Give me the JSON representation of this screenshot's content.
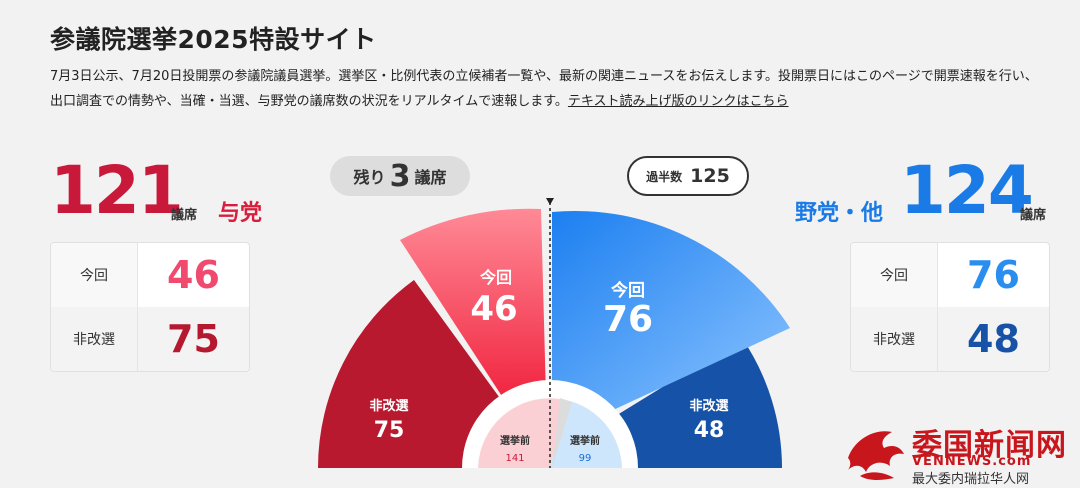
{
  "page": {
    "title": "参議院選挙2025特設サイト",
    "description": "7月3日公示、7月20日投開票の参議院議員選挙。選挙区・比例代表の立候補者一覧や、最新の関連ニュースをお伝えします。投開票日にはこのページで開票速報を行い、出口調査での情勢や、当確・当選、与野党の議席数の状況をリアルタイムで速報します。",
    "text_link": "テキスト読み上げ版のリンクはこちら"
  },
  "ruling": {
    "total": "121",
    "unit": "議席",
    "name": "与党",
    "rows": [
      {
        "label": "今回",
        "value": "46"
      },
      {
        "label": "非改選",
        "value": "75"
      }
    ],
    "color_current": "#f04b63",
    "color_noncontest": "#b5192f"
  },
  "opposition": {
    "total": "124",
    "unit": "議席",
    "name": "野党・他",
    "rows": [
      {
        "label": "今回",
        "value": "76"
      },
      {
        "label": "非改選",
        "value": "48"
      }
    ],
    "color_current": "#2a8df0",
    "color_noncontest": "#1752a6"
  },
  "remaining": {
    "prefix": "残り",
    "value": "3",
    "suffix": "議席"
  },
  "majority": {
    "label": "過半数",
    "value": "125"
  },
  "chart": {
    "ruling_current": {
      "label": "今回",
      "value": "46"
    },
    "ruling_noncontest": {
      "label": "非改選",
      "value": "75"
    },
    "opposition_current": {
      "label": "今回",
      "value": "76"
    },
    "opposition_noncontest": {
      "label": "非改選",
      "value": "48"
    },
    "ruling_before": {
      "label": "選挙前",
      "value": "141"
    },
    "opposition_before": {
      "label": "選挙前",
      "value": "99"
    }
  },
  "logo": {
    "cn": "委国新闻网",
    "en": "VENNEWS.com",
    "sub": "最大委内瑞拉华人网"
  }
}
